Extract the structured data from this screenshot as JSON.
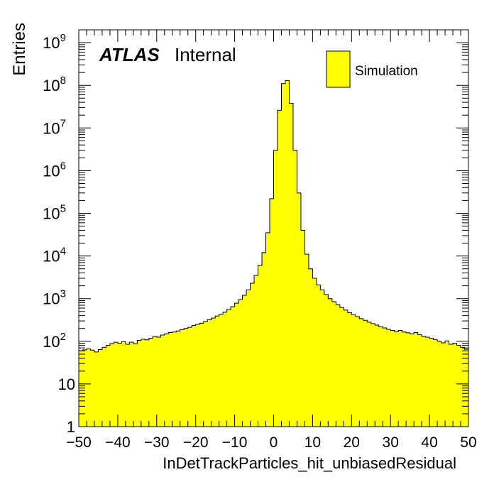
{
  "chart_data": {
    "type": "histogram",
    "xlabel": "InDetTrackParticles_hit_unbiasedResidual",
    "ylabel": "Entries",
    "xlim": [
      -50,
      50
    ],
    "ylim": [
      1,
      2000000000
    ],
    "yscale": "log",
    "fill_color": "#ffff00",
    "line_color": "#000000",
    "bin_width": 1,
    "x_ticks": [
      -50,
      -40,
      -30,
      -20,
      -10,
      0,
      10,
      20,
      30,
      40,
      50
    ],
    "x_tick_labels": [
      "−50",
      "−40",
      "−30",
      "−20",
      "−10",
      "0",
      "10",
      "20",
      "30",
      "40",
      "50"
    ],
    "y_ticks": [
      {
        "value": 1,
        "base": "1",
        "exp": ""
      },
      {
        "value": 10,
        "base": "10",
        "exp": ""
      },
      {
        "value": 100,
        "base": "10",
        "exp": "2"
      },
      {
        "value": 1000,
        "base": "10",
        "exp": "3"
      },
      {
        "value": 10000,
        "base": "10",
        "exp": "4"
      },
      {
        "value": 100000,
        "base": "10",
        "exp": "5"
      },
      {
        "value": 1000000,
        "base": "10",
        "exp": "6"
      },
      {
        "value": 10000000,
        "base": "10",
        "exp": "7"
      },
      {
        "value": 100000000,
        "base": "10",
        "exp": "8"
      },
      {
        "value": 1000000000,
        "base": "10",
        "exp": "9"
      }
    ],
    "legend": {
      "label": "Simulation",
      "placement": "top-right"
    },
    "annotation": {
      "bold": "ATLAS",
      "normal": "Internal"
    },
    "values": [
      60,
      63,
      66,
      62,
      56,
      64,
      72,
      80,
      88,
      95,
      90,
      98,
      85,
      95,
      88,
      105,
      112,
      108,
      118,
      130,
      125,
      140,
      150,
      160,
      165,
      175,
      188,
      200,
      212,
      235,
      250,
      265,
      290,
      320,
      350,
      390,
      430,
      480,
      560,
      650,
      780,
      950,
      1200,
      1600,
      2300,
      3500,
      6000,
      12000,
      35000,
      220000,
      3000000,
      26000000,
      110000000,
      130000000,
      38000000,
      3000000,
      300000,
      40000,
      11000,
      5000,
      3000,
      2100,
      1600,
      1250,
      1000,
      850,
      720,
      620,
      540,
      470,
      420,
      380,
      340,
      310,
      280,
      260,
      240,
      220,
      205,
      190,
      180,
      170,
      180,
      165,
      158,
      150,
      160,
      142,
      130,
      125,
      118,
      110,
      100,
      92,
      102,
      85,
      90,
      80,
      72,
      65
    ]
  }
}
